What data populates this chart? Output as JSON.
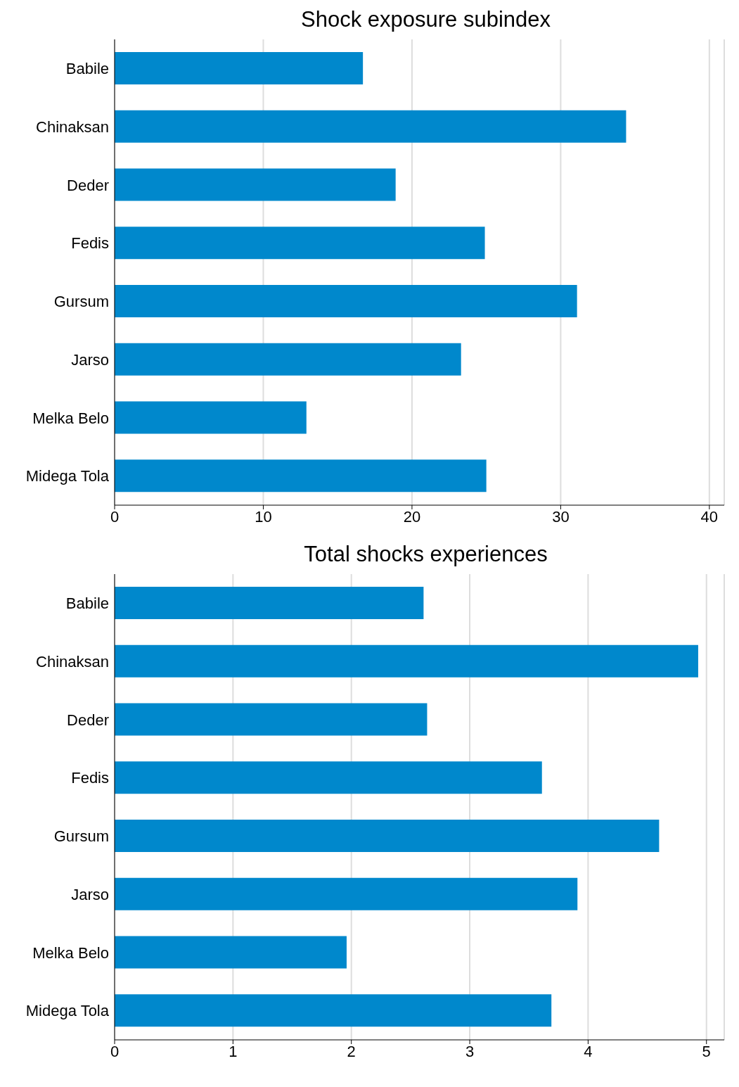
{
  "chart_data": [
    {
      "type": "bar",
      "orientation": "horizontal",
      "title": "Shock exposure subindex",
      "categories": [
        "Babile",
        "Chinaksan",
        "Deder",
        "Fedis",
        "Gursum",
        "Jarso",
        "Melka Belo",
        "Midega Tola"
      ],
      "values": [
        16.7,
        34.4,
        18.9,
        24.9,
        31.1,
        23.3,
        12.9,
        25.0
      ],
      "color": "#0088cc",
      "xlim": [
        0,
        41
      ],
      "xticks": [
        0,
        10,
        20,
        30,
        40
      ],
      "grid": "x"
    },
    {
      "type": "bar",
      "orientation": "horizontal",
      "title": "Total shocks experiences",
      "categories": [
        "Babile",
        "Chinaksan",
        "Deder",
        "Fedis",
        "Gursum",
        "Jarso",
        "Melka Belo",
        "Midega Tola"
      ],
      "values": [
        2.61,
        4.93,
        2.64,
        3.61,
        4.6,
        3.91,
        1.96,
        3.69
      ],
      "color": "#0088cc",
      "xlim": [
        0,
        5.15
      ],
      "xticks": [
        0,
        1,
        2,
        3,
        4,
        5
      ],
      "grid": "x"
    }
  ]
}
